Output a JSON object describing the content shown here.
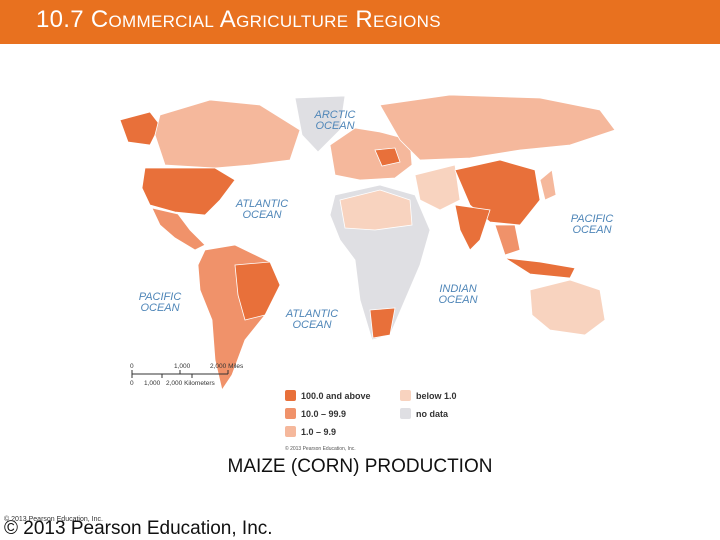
{
  "header": {
    "title": "10.7 Commercial Agriculture Regions"
  },
  "map": {
    "oceans": [
      {
        "lines": [
          "ARCTIC",
          "OCEAN"
        ]
      },
      {
        "lines": [
          "ATLANTIC",
          "OCEAN"
        ]
      },
      {
        "lines": [
          "PACIFIC",
          "OCEAN"
        ]
      },
      {
        "lines": [
          "PACIFIC",
          "OCEAN"
        ]
      },
      {
        "lines": [
          "ATLANTIC",
          "OCEAN"
        ]
      },
      {
        "lines": [
          "INDIAN",
          "OCEAN"
        ]
      }
    ],
    "scale": {
      "miles": [
        "0",
        "1,000",
        "2,000 Miles"
      ],
      "kilometers": [
        "0",
        "1,000",
        "2,000 Kilometers"
      ]
    },
    "legend": [
      {
        "label": "100.0 and above",
        "color": "#e8703a"
      },
      {
        "label": "10.0 – 99.9",
        "color": "#f0926a"
      },
      {
        "label": "1.0 – 9.9",
        "color": "#f5b89c"
      },
      {
        "label": "below 1.0",
        "color": "#f8d3bf"
      },
      {
        "label": "no data",
        "color": "#dfdfe3"
      }
    ],
    "credit": "© 2013 Pearson Education, Inc."
  },
  "caption": "MAIZE (CORN) PRODUCTION",
  "footer": {
    "small": "© 2013 Pearson Education, Inc.",
    "large": "© 2013 Pearson Education, Inc."
  }
}
